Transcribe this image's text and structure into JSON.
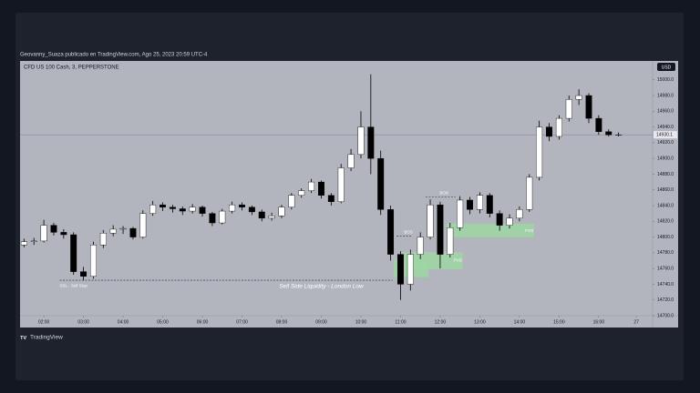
{
  "header": {
    "publish": "Geovanny_Suaza publicado en TradingView.com, Ago 25, 2023 20:59 UTC-4",
    "brand": "TradingView"
  },
  "chart_data": {
    "type": "candlestick",
    "title": "CFD US 100 Cash, 3, PEPPERSTONE",
    "currency": "USD",
    "up_color": "#ffffff",
    "down_color": "#000000",
    "x": [
      1.5,
      1.75,
      2,
      2.25,
      2.5,
      2.75,
      3,
      3.25,
      3.5,
      3.75,
      4,
      4.25,
      4.5,
      4.75,
      5,
      5.25,
      5.5,
      5.75,
      6,
      6.25,
      6.5,
      6.75,
      7,
      7.25,
      7.5,
      7.75,
      8,
      8.25,
      8.5,
      8.75,
      9,
      9.25,
      9.5,
      9.75,
      10,
      10.25,
      10.5,
      10.75,
      11,
      11.25,
      11.5,
      11.75,
      12,
      12.25,
      12.5,
      12.75,
      13,
      13.25,
      13.5,
      13.75,
      14,
      14.25,
      14.5,
      14.75,
      15,
      15.25,
      15.5,
      15.75,
      16,
      16.25,
      16.5
    ],
    "open": [
      14790,
      14794,
      14795,
      14815,
      14806,
      14803,
      14756,
      14750,
      14790,
      14805,
      14810,
      14811,
      14800,
      14830,
      14841,
      14838,
      14836,
      14833,
      14838,
      14830,
      14818,
      14833,
      14841,
      14838,
      14832,
      14824,
      14827,
      14838,
      14853,
      14859,
      14870,
      14853,
      14845,
      14888,
      14905,
      14940,
      14900,
      14835,
      14778,
      14740,
      14778,
      14800,
      14841,
      14778,
      14812,
      14847,
      14835,
      14853,
      14830,
      14815,
      14824,
      14835,
      14876,
      14940,
      14928,
      14951,
      14975,
      14980,
      14951,
      14934,
      14930
    ],
    "high": [
      14798,
      14799,
      14822,
      14818,
      14810,
      14806,
      14762,
      14794,
      14809,
      14815,
      14814,
      14813,
      14834,
      14846,
      14844,
      14841,
      14839,
      14842,
      14840,
      14832,
      14836,
      14845,
      14844,
      14840,
      14835,
      14831,
      14841,
      14856,
      14862,
      14874,
      14872,
      14856,
      14893,
      14912,
      14960,
      15007,
      14910,
      14840,
      14782,
      14784,
      14806,
      14848,
      14845,
      14818,
      14852,
      14851,
      14857,
      14856,
      14834,
      14829,
      14839,
      14880,
      14948,
      14945,
      14955,
      14980,
      14988,
      14983,
      14955,
      14937,
      14933
    ],
    "low": [
      14787,
      14790,
      14793,
      14802,
      14798,
      14752,
      14745,
      14747,
      14786,
      14801,
      14804,
      14797,
      14798,
      14827,
      14833,
      14831,
      14828,
      14830,
      14826,
      14814,
      14816,
      14830,
      14834,
      14828,
      14820,
      14821,
      14824,
      14835,
      14850,
      14856,
      14849,
      14840,
      14843,
      14884,
      14900,
      14880,
      14828,
      14770,
      14720,
      14732,
      14772,
      14797,
      14760,
      14774,
      14808,
      14829,
      14830,
      14825,
      14808,
      14811,
      14820,
      14832,
      14872,
      14922,
      14924,
      14947,
      14968,
      14945,
      14930,
      14928,
      14928
    ],
    "close": [
      14794,
      14795,
      14815,
      14806,
      14803,
      14756,
      14750,
      14790,
      14805,
      14810,
      14811,
      14800,
      14830,
      14841,
      14838,
      14836,
      14833,
      14838,
      14830,
      14818,
      14833,
      14841,
      14838,
      14832,
      14824,
      14827,
      14838,
      14853,
      14859,
      14870,
      14853,
      14845,
      14888,
      14905,
      14940,
      14900,
      14835,
      14778,
      14740,
      14778,
      14800,
      14841,
      14778,
      14812,
      14847,
      14835,
      14853,
      14830,
      14815,
      14824,
      14835,
      14876,
      14940,
      14928,
      14951,
      14975,
      14980,
      14951,
      14934,
      14930,
      14930.1
    ],
    "last_price": 14930.1,
    "xlim": [
      1.4,
      17.36
    ],
    "ylim": [
      14700,
      15024
    ],
    "xticks": [
      {
        "value": 2,
        "label": "02:00"
      },
      {
        "value": 3,
        "label": "03:00"
      },
      {
        "value": 4,
        "label": "04:00"
      },
      {
        "value": 5,
        "label": "05:00"
      },
      {
        "value": 6,
        "label": "06:00"
      },
      {
        "value": 7,
        "label": "07:00"
      },
      {
        "value": 8,
        "label": "08:00"
      },
      {
        "value": 9,
        "label": "09:00"
      },
      {
        "value": 10,
        "label": "10:00"
      },
      {
        "value": 11,
        "label": "11:00"
      },
      {
        "value": 12,
        "label": "12:00"
      },
      {
        "value": 13,
        "label": "13:00"
      },
      {
        "value": 14,
        "label": "14:00"
      },
      {
        "value": 15,
        "label": "15:00"
      },
      {
        "value": 16,
        "label": "16:00"
      },
      {
        "value": 16.95,
        "label": "27"
      }
    ],
    "yticks": [
      {
        "value": 14700,
        "label": "14700.0"
      },
      {
        "value": 14720,
        "label": "14720.0"
      },
      {
        "value": 14740,
        "label": "14740.0"
      },
      {
        "value": 14760,
        "label": "14760.0"
      },
      {
        "value": 14780,
        "label": "14780.0"
      },
      {
        "value": 14800,
        "label": "14800.0"
      },
      {
        "value": 14820,
        "label": "14820.0"
      },
      {
        "value": 14840,
        "label": "14840.0"
      },
      {
        "value": 14860,
        "label": "14860.0"
      },
      {
        "value": 14880,
        "label": "14880.0"
      },
      {
        "value": 14900,
        "label": "14900.0"
      },
      {
        "value": 14920,
        "label": "14920.0"
      },
      {
        "value": 14940,
        "label": "14940.0"
      },
      {
        "value": 14960,
        "label": "14960.0"
      },
      {
        "value": 14980,
        "label": "14980.0"
      },
      {
        "value": 15000,
        "label": "15000.0"
      }
    ],
    "zones": [
      {
        "x0": 10.83,
        "x1": 11.7,
        "lo": 14749,
        "hi": 14772
      },
      {
        "x0": 11.01,
        "x1": 12.57,
        "lo": 14759,
        "hi": 14781
      },
      {
        "x0": 12.16,
        "x1": 14.37,
        "lo": 14800,
        "hi": 14817
      }
    ],
    "levels": [
      {
        "from": 2.4,
        "to": 10.8,
        "price": 14745
      },
      {
        "from": 11.63,
        "to": 12.39,
        "price": 14851
      },
      {
        "from": 10.9,
        "to": 11.3,
        "price": 14801
      }
    ],
    "labels": [
      {
        "text": "SSL - Sell Stop",
        "x": 2.75,
        "price": 14738
      },
      {
        "text": "Sell Side Liquidity - London Low",
        "x": 9.0,
        "price": 14737
      },
      {
        "text": "BOS",
        "x": 12.1,
        "price": 14856
      },
      {
        "text": "BOS",
        "x": 11.2,
        "price": 14806
      },
      {
        "text": "FVG",
        "x": 12.45,
        "price": 14770
      },
      {
        "text": "FVG",
        "x": 14.25,
        "price": 14808
      }
    ]
  }
}
